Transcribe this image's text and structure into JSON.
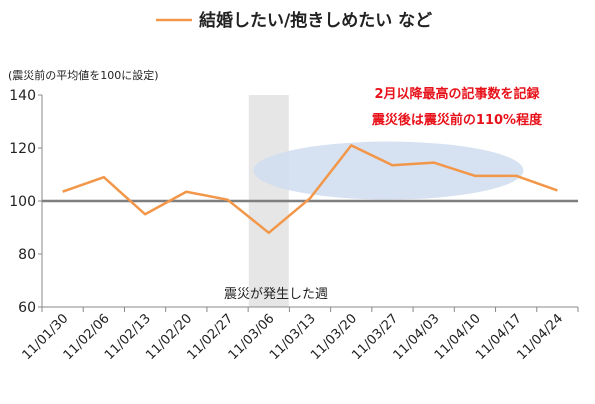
{
  "chart_data": {
    "type": "line",
    "legend": "結婚したい/抱きしめたい など",
    "unit_note": "(震災前の平均値を100に設定)",
    "categories": [
      "11/01/30",
      "11/02/06",
      "11/02/13",
      "11/02/20",
      "11/02/27",
      "11/03/06",
      "11/03/13",
      "11/03/20",
      "11/03/27",
      "11/04/03",
      "11/04/10",
      "11/04/17",
      "11/04/24"
    ],
    "series": [
      {
        "name": "結婚したい/抱きしめたい など",
        "values": [
          103.5,
          109,
          95,
          103.5,
          100.5,
          88,
          101,
          121,
          113.5,
          114.5,
          109.5,
          109.5,
          104
        ]
      }
    ],
    "ylim": [
      60,
      140
    ],
    "yticks": [
      60,
      80,
      100,
      120,
      140
    ],
    "baseline": 100,
    "event_category": "11/03/06",
    "event_label": "震災が発生した週",
    "annotations": [
      "2月以降最高の記事数を記録",
      "震災後は震災前の110%程度"
    ],
    "colors": {
      "line": "#F2974A",
      "baseline": "#7F7F7F",
      "event_band": "#E6E6E6",
      "highlight_ellipse": "#CFDCEE",
      "annotation_text": "#E8121B"
    }
  }
}
